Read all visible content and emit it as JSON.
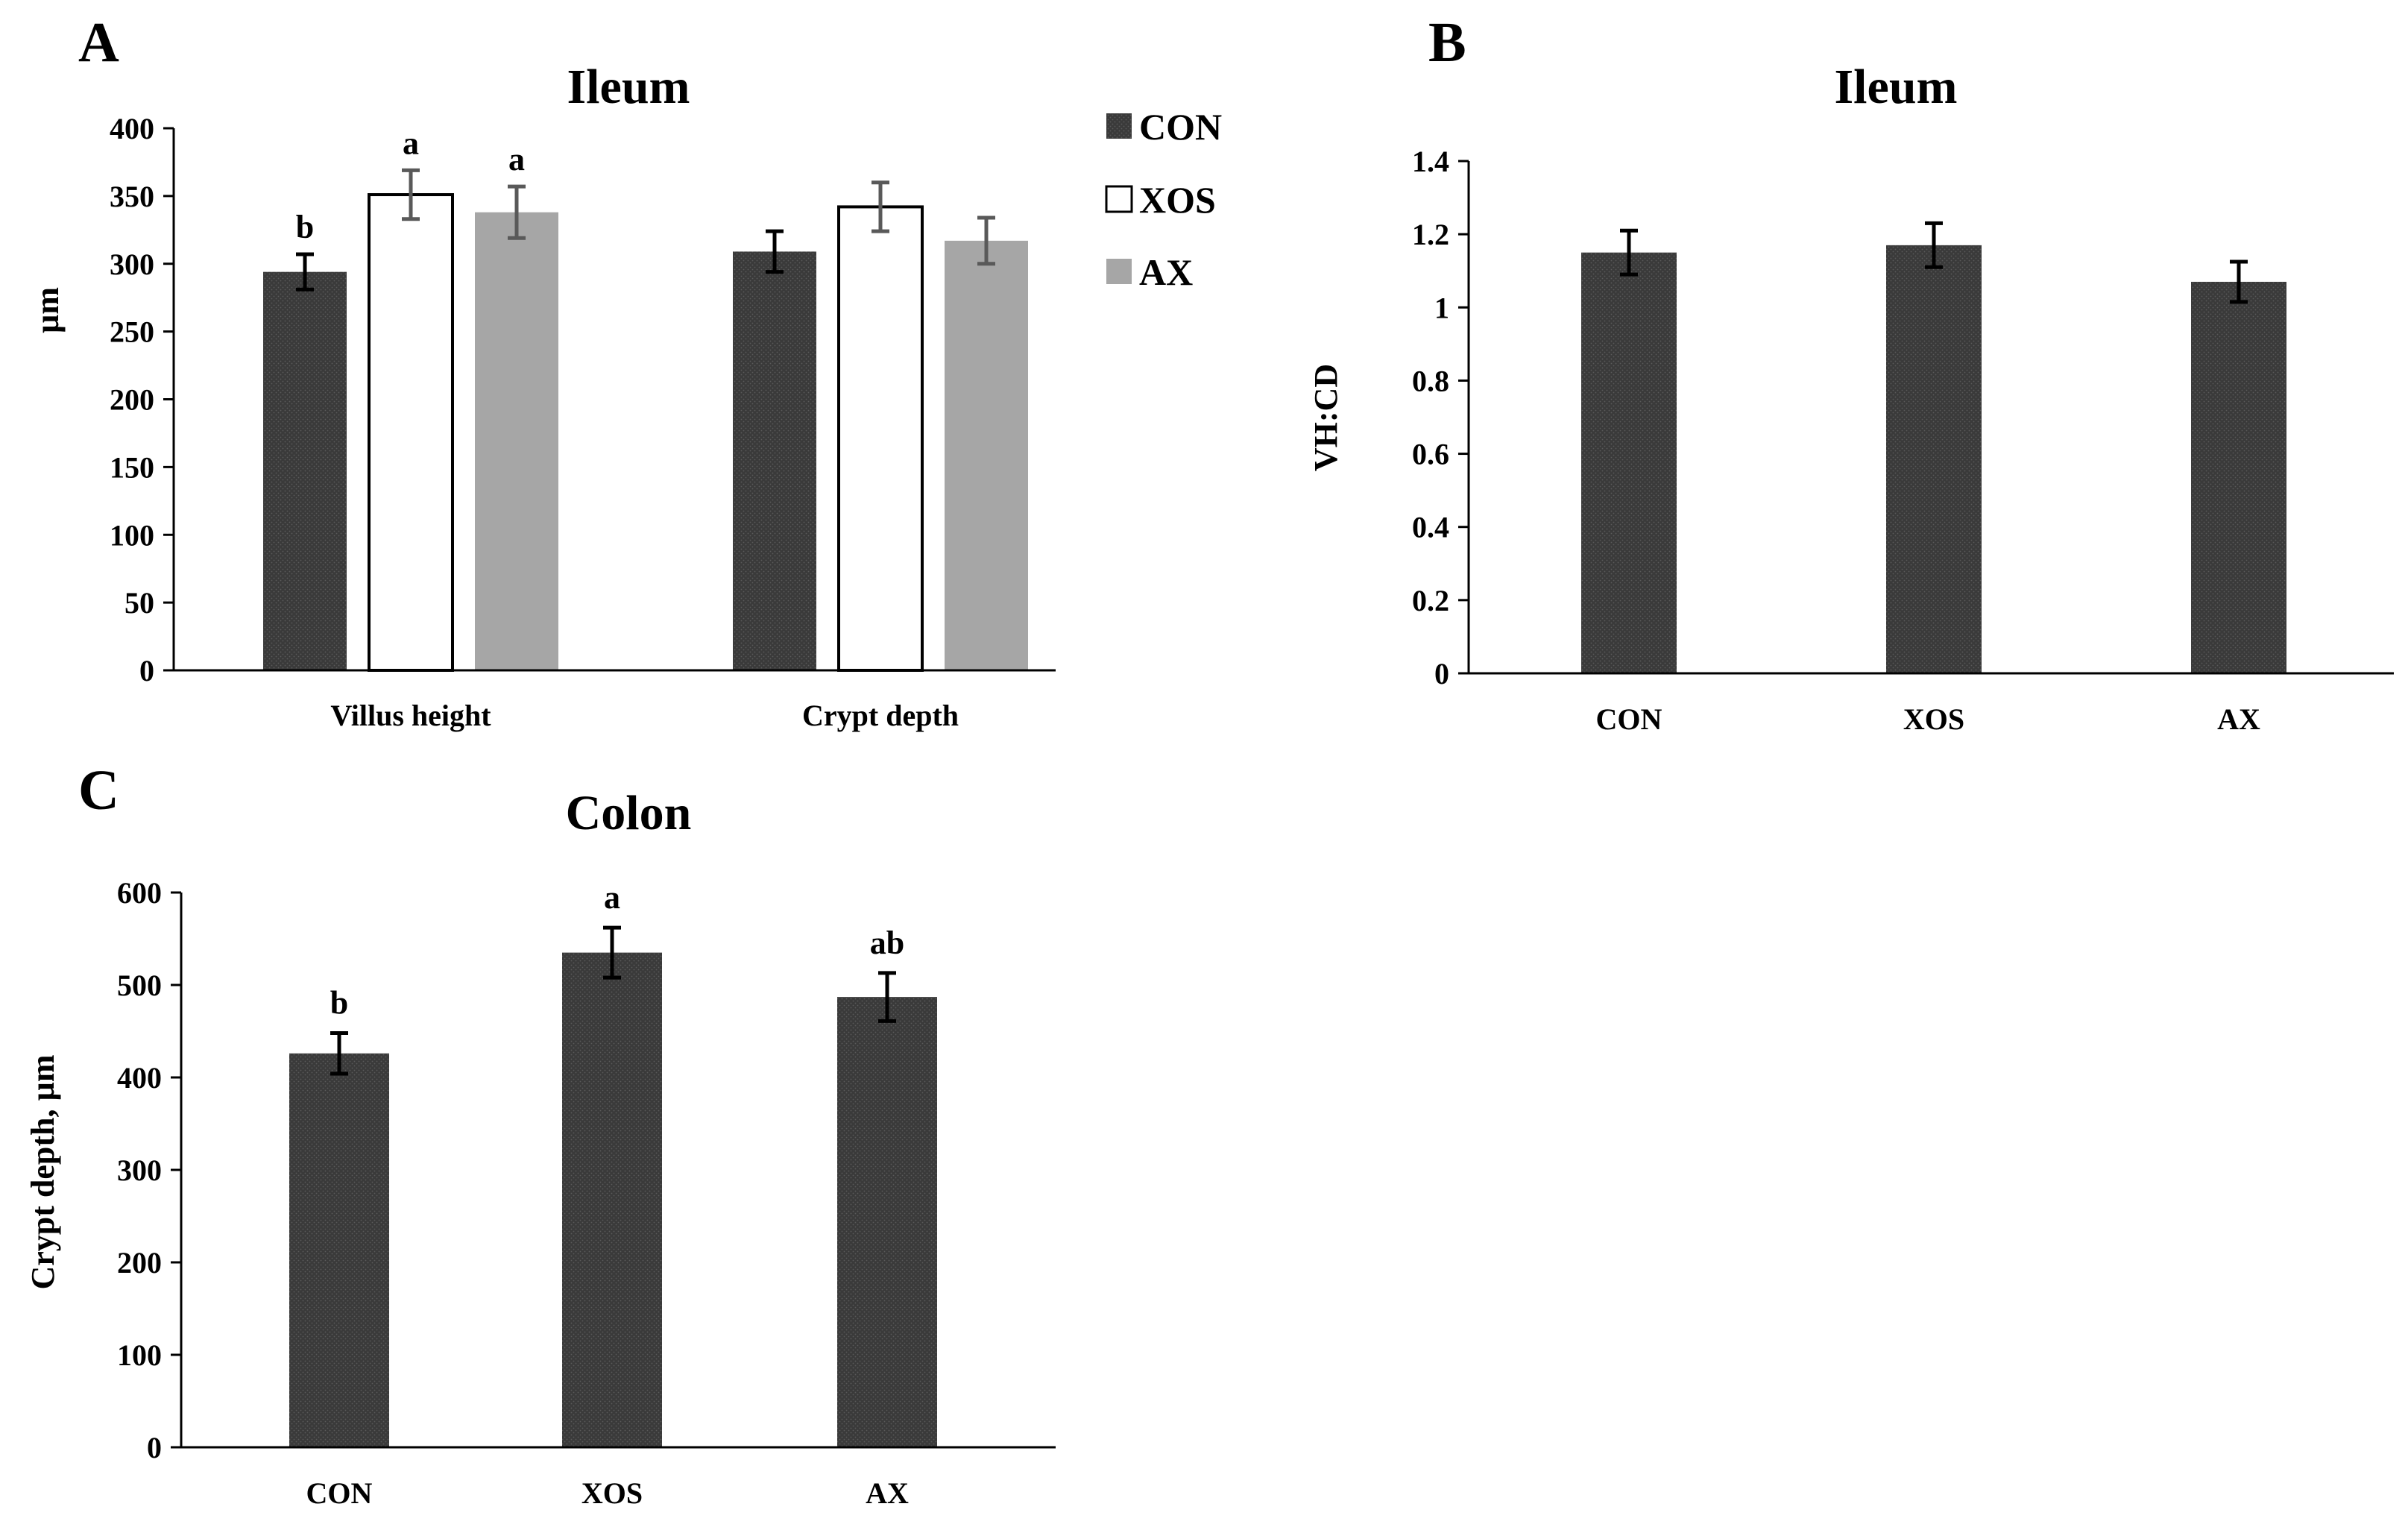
{
  "colors": {
    "CON": "#3a3a3a",
    "XOS": "#ffffff",
    "AX": "#a6a6a6",
    "axis": "#000000",
    "error_dark": "#000000",
    "error_gray": "#595959"
  },
  "chart_data": [
    {
      "panel": "A",
      "type": "bar",
      "title": "Ileum",
      "ylabel": "µm",
      "xlabel": "",
      "ylim": [
        0,
        400
      ],
      "yticks": [
        0,
        50,
        100,
        150,
        200,
        250,
        300,
        350,
        400
      ],
      "ytick_labels": [
        "0",
        "50",
        "100",
        "150",
        "200",
        "250",
        "300",
        "350",
        "400"
      ],
      "categories": [
        "Villus height",
        "Crypt depth"
      ],
      "legend_position": "top-right",
      "series": [
        {
          "name": "CON",
          "values": [
            294,
            309
          ],
          "errors": [
            13,
            15
          ],
          "labels": [
            "b",
            ""
          ]
        },
        {
          "name": "XOS",
          "values": [
            351,
            342
          ],
          "errors": [
            18,
            18
          ],
          "labels": [
            "a",
            ""
          ]
        },
        {
          "name": "AX",
          "values": [
            338,
            317
          ],
          "errors": [
            19,
            17
          ],
          "labels": [
            "a",
            ""
          ]
        }
      ]
    },
    {
      "panel": "B",
      "type": "bar",
      "title": "Ileum",
      "ylabel": "VH:CD",
      "xlabel": "",
      "ylim": [
        0,
        1.4
      ],
      "yticks": [
        0,
        0.2,
        0.4,
        0.6,
        0.8,
        1,
        1.2,
        1.4
      ],
      "ytick_labels": [
        "0",
        "0.2",
        "0.4",
        "0.6",
        "0.8",
        "1",
        "1.2",
        "1.4"
      ],
      "categories": [
        "CON",
        "XOS",
        "AX"
      ],
      "values": [
        1.15,
        1.17,
        1.07
      ],
      "errors": [
        0.06,
        0.06,
        0.055
      ],
      "labels": [
        "",
        "",
        ""
      ]
    },
    {
      "panel": "C",
      "type": "bar",
      "title": "Colon",
      "ylabel": "Crypt depth, µm",
      "xlabel": "",
      "ylim": [
        0,
        600
      ],
      "yticks": [
        0,
        100,
        200,
        300,
        400,
        500,
        600
      ],
      "ytick_labels": [
        "0",
        "100",
        "200",
        "300",
        "400",
        "500",
        "600"
      ],
      "categories": [
        "CON",
        "XOS",
        "AX"
      ],
      "values": [
        426,
        535,
        487
      ],
      "errors": [
        22,
        27,
        26
      ],
      "labels": [
        "b",
        "a",
        "ab"
      ]
    }
  ]
}
